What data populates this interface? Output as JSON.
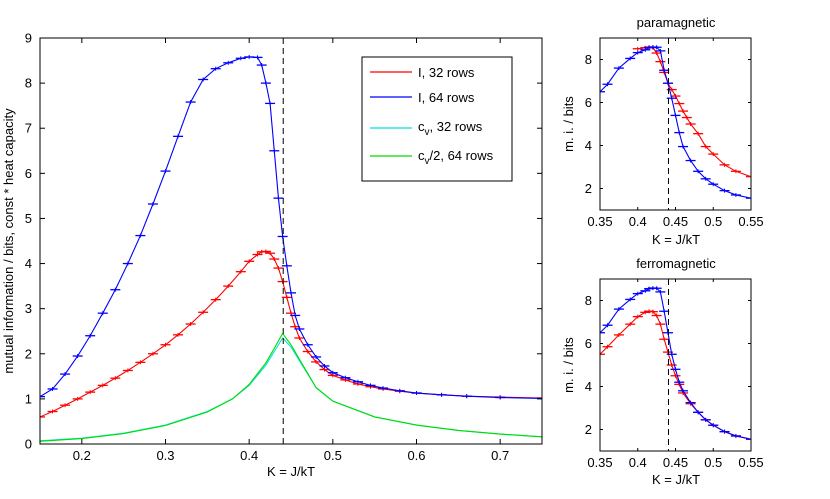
{
  "chart_data": [
    {
      "id": "main",
      "type": "line",
      "title": "",
      "xlabel": "K = J/kT",
      "ylabel": "mutual information / bits, const * heat capacity",
      "xlim": [
        0.15,
        0.75
      ],
      "ylim": [
        0,
        9
      ],
      "xticks": [
        0.2,
        0.3,
        0.4,
        0.5,
        0.6,
        0.7
      ],
      "xtick_labels": [
        "0.2",
        "0.3",
        "0.4",
        "0.5",
        "0.6",
        "0.7"
      ],
      "yticks": [
        0,
        1,
        2,
        3,
        4,
        5,
        6,
        7,
        8,
        9
      ],
      "ytick_labels": [
        "0",
        "1",
        "2",
        "3",
        "4",
        "5",
        "6",
        "7",
        "8",
        "9"
      ],
      "vline": 0.4407,
      "legend": {
        "placement": "top-right",
        "entries": [
          "I, 32 rows",
          "I, 64 rows",
          "c_v, 32 rows",
          "c_v/2, 64 rows"
        ]
      },
      "series": [
        {
          "name": "I, 32 rows",
          "color": "#ff0000",
          "errorbars": true,
          "x": [
            0.15,
            0.165,
            0.18,
            0.195,
            0.21,
            0.225,
            0.24,
            0.255,
            0.27,
            0.285,
            0.3,
            0.315,
            0.33,
            0.345,
            0.36,
            0.375,
            0.39,
            0.4,
            0.41,
            0.415,
            0.42,
            0.425,
            0.43,
            0.435,
            0.44,
            0.445,
            0.45,
            0.455,
            0.46,
            0.47,
            0.48,
            0.49,
            0.5,
            0.515,
            0.53,
            0.545,
            0.56,
            0.58,
            0.6,
            0.63,
            0.66,
            0.7,
            0.75
          ],
          "y": [
            0.6,
            0.72,
            0.86,
            1.0,
            1.15,
            1.3,
            1.46,
            1.63,
            1.81,
            2.0,
            2.2,
            2.42,
            2.66,
            2.92,
            3.2,
            3.5,
            3.82,
            4.05,
            4.2,
            4.26,
            4.27,
            4.23,
            4.1,
            3.9,
            3.6,
            3.25,
            2.9,
            2.6,
            2.35,
            2.05,
            1.82,
            1.65,
            1.52,
            1.42,
            1.33,
            1.27,
            1.22,
            1.17,
            1.13,
            1.09,
            1.06,
            1.04,
            1.02
          ]
        },
        {
          "name": "I, 64 rows",
          "color": "#0000ff",
          "errorbars": true,
          "x": [
            0.15,
            0.165,
            0.18,
            0.195,
            0.21,
            0.225,
            0.24,
            0.255,
            0.27,
            0.285,
            0.3,
            0.315,
            0.33,
            0.345,
            0.36,
            0.375,
            0.39,
            0.4,
            0.41,
            0.415,
            0.42,
            0.425,
            0.43,
            0.435,
            0.44,
            0.445,
            0.45,
            0.455,
            0.46,
            0.47,
            0.48,
            0.49,
            0.5,
            0.515,
            0.53,
            0.545,
            0.56,
            0.58,
            0.6,
            0.63,
            0.66,
            0.7,
            0.75
          ],
          "y": [
            1.05,
            1.22,
            1.55,
            1.95,
            2.4,
            2.9,
            3.42,
            4.0,
            4.62,
            5.32,
            6.05,
            6.82,
            7.58,
            8.08,
            8.32,
            8.45,
            8.55,
            8.58,
            8.57,
            8.4,
            8.0,
            7.55,
            6.5,
            5.45,
            4.6,
            3.95,
            3.35,
            2.85,
            2.55,
            2.2,
            1.93,
            1.73,
            1.58,
            1.47,
            1.38,
            1.3,
            1.24,
            1.18,
            1.13,
            1.09,
            1.06,
            1.03,
            1.01
          ]
        },
        {
          "name": "c_v, 32 rows",
          "color": "#00e0e0",
          "errorbars": false,
          "x": [
            0.15,
            0.2,
            0.25,
            0.3,
            0.35,
            0.38,
            0.4,
            0.42,
            0.43,
            0.44,
            0.45,
            0.46,
            0.48,
            0.5,
            0.55,
            0.6,
            0.65,
            0.7,
            0.75
          ],
          "y": [
            0.07,
            0.13,
            0.24,
            0.42,
            0.72,
            1.0,
            1.3,
            1.75,
            2.05,
            2.35,
            2.15,
            1.85,
            1.25,
            0.95,
            0.6,
            0.42,
            0.3,
            0.22,
            0.16
          ]
        },
        {
          "name": "c_v/2, 64 rows",
          "color": "#00dd00",
          "errorbars": false,
          "x": [
            0.15,
            0.2,
            0.25,
            0.3,
            0.35,
            0.38,
            0.4,
            0.42,
            0.43,
            0.44,
            0.45,
            0.46,
            0.48,
            0.5,
            0.55,
            0.6,
            0.65,
            0.7,
            0.75
          ],
          "y": [
            0.06,
            0.12,
            0.23,
            0.41,
            0.71,
            1.0,
            1.32,
            1.8,
            2.12,
            2.45,
            2.2,
            1.88,
            1.25,
            0.95,
            0.6,
            0.42,
            0.3,
            0.22,
            0.16
          ]
        }
      ]
    },
    {
      "id": "para",
      "type": "line",
      "title": "paramagnetic",
      "xlabel": "K = J/kT",
      "ylabel": "m. i. / bits",
      "xlim": [
        0.35,
        0.55
      ],
      "ylim": [
        1,
        9
      ],
      "xticks": [
        0.35,
        0.4,
        0.45,
        0.5,
        0.55
      ],
      "xtick_labels": [
        "0.35",
        "0.4",
        "0.45",
        "0.5",
        "0.55"
      ],
      "yticks": [
        2,
        4,
        6,
        8
      ],
      "ytick_labels": [
        "2",
        "4",
        "6",
        "8"
      ],
      "vline": 0.4407,
      "series": [
        {
          "name": "32 rows",
          "color": "#ff0000",
          "errorbars": true,
          "x": [
            0.4,
            0.41,
            0.415,
            0.42,
            0.425,
            0.43,
            0.435,
            0.44,
            0.445,
            0.45,
            0.455,
            0.46,
            0.465,
            0.47,
            0.48,
            0.49,
            0.5,
            0.515,
            0.53,
            0.55
          ],
          "y": [
            8.5,
            8.55,
            8.58,
            8.55,
            8.3,
            7.9,
            7.4,
            6.9,
            6.6,
            6.3,
            5.95,
            5.6,
            5.3,
            5.0,
            4.55,
            3.95,
            3.6,
            3.1,
            2.8,
            2.55
          ]
        },
        {
          "name": "64 rows",
          "color": "#0000ff",
          "errorbars": true,
          "x": [
            0.35,
            0.36,
            0.375,
            0.39,
            0.4,
            0.41,
            0.415,
            0.42,
            0.425,
            0.43,
            0.435,
            0.44,
            0.445,
            0.45,
            0.455,
            0.46,
            0.47,
            0.48,
            0.49,
            0.5,
            0.515,
            0.53,
            0.55
          ],
          "y": [
            6.5,
            6.85,
            7.6,
            8.05,
            8.32,
            8.45,
            8.55,
            8.58,
            8.57,
            8.4,
            7.5,
            6.9,
            6.2,
            5.4,
            4.6,
            3.95,
            3.3,
            2.8,
            2.45,
            2.2,
            1.9,
            1.7,
            1.55
          ]
        }
      ]
    },
    {
      "id": "ferro",
      "type": "line",
      "title": "ferromagnetic",
      "xlabel": "K = J/kT",
      "ylabel": "m. i. / bits",
      "xlim": [
        0.35,
        0.55
      ],
      "ylim": [
        1,
        9
      ],
      "xticks": [
        0.35,
        0.4,
        0.45,
        0.5,
        0.55
      ],
      "xtick_labels": [
        "0.35",
        "0.4",
        "0.45",
        "0.5",
        "0.55"
      ],
      "yticks": [
        2,
        4,
        6,
        8
      ],
      "ytick_labels": [
        "2",
        "4",
        "6",
        "8"
      ],
      "vline": 0.4407,
      "series": [
        {
          "name": "32 rows",
          "color": "#ff0000",
          "errorbars": true,
          "x": [
            0.35,
            0.36,
            0.375,
            0.39,
            0.4,
            0.41,
            0.415,
            0.42,
            0.425,
            0.43,
            0.435,
            0.44,
            0.445,
            0.45,
            0.455,
            0.46,
            0.47,
            0.48,
            0.49,
            0.5,
            0.515,
            0.53,
            0.55
          ],
          "y": [
            5.5,
            5.85,
            6.4,
            6.9,
            7.25,
            7.45,
            7.5,
            7.48,
            7.3,
            6.9,
            6.2,
            5.6,
            5.0,
            4.5,
            4.1,
            3.7,
            3.2,
            2.8,
            2.45,
            2.2,
            1.9,
            1.7,
            1.55
          ]
        },
        {
          "name": "64 rows",
          "color": "#0000ff",
          "errorbars": true,
          "x": [
            0.35,
            0.36,
            0.375,
            0.39,
            0.4,
            0.41,
            0.415,
            0.42,
            0.425,
            0.43,
            0.435,
            0.44,
            0.445,
            0.45,
            0.455,
            0.46,
            0.47,
            0.48,
            0.49,
            0.5,
            0.515,
            0.53,
            0.55
          ],
          "y": [
            6.5,
            6.85,
            7.6,
            8.05,
            8.32,
            8.45,
            8.55,
            8.58,
            8.57,
            8.4,
            7.5,
            6.5,
            5.5,
            4.8,
            4.2,
            3.8,
            3.25,
            2.8,
            2.45,
            2.2,
            1.9,
            1.7,
            1.55
          ]
        }
      ]
    }
  ]
}
